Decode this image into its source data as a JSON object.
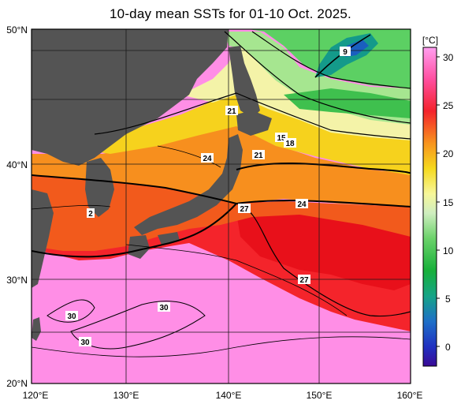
{
  "title": "10-day mean SSTs for 01-10 Oct. 2025.",
  "colorbar": {
    "unit": "[°C]",
    "ticks": [
      "30",
      "25",
      "20",
      "15",
      "10",
      "5",
      "0"
    ]
  },
  "axes": {
    "lat_labels": [
      "50°N",
      "40°N",
      "30°N",
      "20°N"
    ],
    "lon_labels": [
      "120°E",
      "130°E",
      "140°E",
      "150°E",
      "160°E"
    ]
  },
  "contour_labels": [
    "9",
    "21",
    "15",
    "18",
    "21",
    "24",
    "24",
    "27",
    "2",
    "27",
    "30",
    "30",
    "30"
  ],
  "colors": {
    "land": "#545454",
    "frame": "#000000",
    "gridline": "#1a1a1a"
  }
}
